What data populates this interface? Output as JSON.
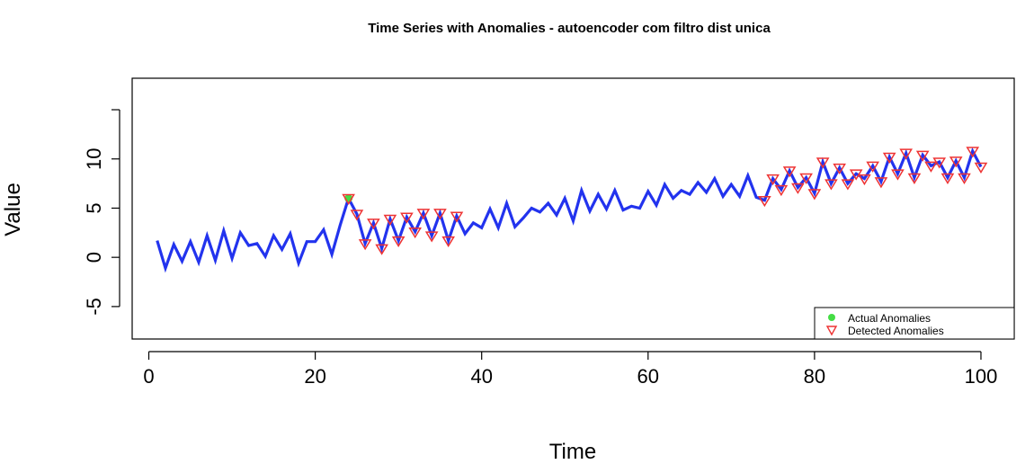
{
  "chart_data": {
    "type": "line",
    "title": "Time Series with Anomalies - autoencoder com filtro dist unica",
    "xlabel": "Time",
    "ylabel": "Value",
    "xlim": [
      -2,
      104
    ],
    "ylim": [
      -8.3,
      18.2
    ],
    "xticks": [
      "0",
      "20",
      "40",
      "60",
      "80",
      "100"
    ],
    "yticks": [
      "-5",
      "0",
      "5",
      "10"
    ],
    "legend": {
      "position": "bottom-right",
      "entries": [
        "Actual Anomalies",
        "Detected Anomalies"
      ]
    },
    "series_color": "#2233ee",
    "actual_color": "#44dd44",
    "detected_color": "#ee3333",
    "x": [
      1,
      2,
      3,
      4,
      5,
      6,
      7,
      8,
      9,
      10,
      11,
      12,
      13,
      14,
      15,
      16,
      17,
      18,
      19,
      20,
      21,
      22,
      23,
      24,
      25,
      26,
      27,
      28,
      29,
      30,
      31,
      32,
      33,
      34,
      35,
      36,
      37,
      38,
      39,
      40,
      41,
      42,
      43,
      44,
      45,
      46,
      47,
      48,
      49,
      50,
      51,
      52,
      53,
      54,
      55,
      56,
      57,
      58,
      59,
      60,
      61,
      62,
      63,
      64,
      65,
      66,
      67,
      68,
      69,
      70,
      71,
      72,
      73,
      74,
      75,
      76,
      77,
      78,
      79,
      80,
      81,
      82,
      83,
      84,
      85,
      86,
      87,
      88,
      89,
      90,
      91,
      92,
      93,
      94,
      95,
      96,
      97,
      98,
      99,
      100
    ],
    "values": [
      1.7,
      -1.1,
      1.3,
      -0.4,
      1.6,
      -0.5,
      2.2,
      -0.3,
      2.7,
      -0.1,
      2.5,
      1.2,
      1.4,
      0.1,
      2.2,
      0.8,
      2.4,
      -0.6,
      1.6,
      1.6,
      2.8,
      0.3,
      3.3,
      6.0,
      4.4,
      1.4,
      3.5,
      0.9,
      3.9,
      1.7,
      4.1,
      2.6,
      4.5,
      2.2,
      4.5,
      1.7,
      4.2,
      2.4,
      3.5,
      3.0,
      4.9,
      3.0,
      5.5,
      3.1,
      4.0,
      5.0,
      4.6,
      5.5,
      4.3,
      6.0,
      3.7,
      6.8,
      4.7,
      6.4,
      4.9,
      6.8,
      4.8,
      5.2,
      5.0,
      6.7,
      5.3,
      7.4,
      6.0,
      6.8,
      6.4,
      7.6,
      6.6,
      8.0,
      6.2,
      7.4,
      6.2,
      8.3,
      6.1,
      5.8,
      8.0,
      6.9,
      8.8,
      7.1,
      8.1,
      6.5,
      9.7,
      7.5,
      9.1,
      7.5,
      8.5,
      8.0,
      9.3,
      7.7,
      10.2,
      8.5,
      10.6,
      8.1,
      10.4,
      9.3,
      9.7,
      8.1,
      9.8,
      8.1,
      10.8,
      9.2
    ],
    "actual_anomalies": [
      24
    ],
    "detected_anomalies": [
      24,
      25,
      26,
      27,
      28,
      29,
      30,
      31,
      32,
      33,
      34,
      35,
      36,
      37,
      74,
      75,
      76,
      77,
      78,
      79,
      80,
      81,
      82,
      83,
      84,
      85,
      86,
      87,
      88,
      89,
      90,
      91,
      92,
      93,
      94,
      95,
      96,
      97,
      98,
      99,
      100
    ]
  }
}
